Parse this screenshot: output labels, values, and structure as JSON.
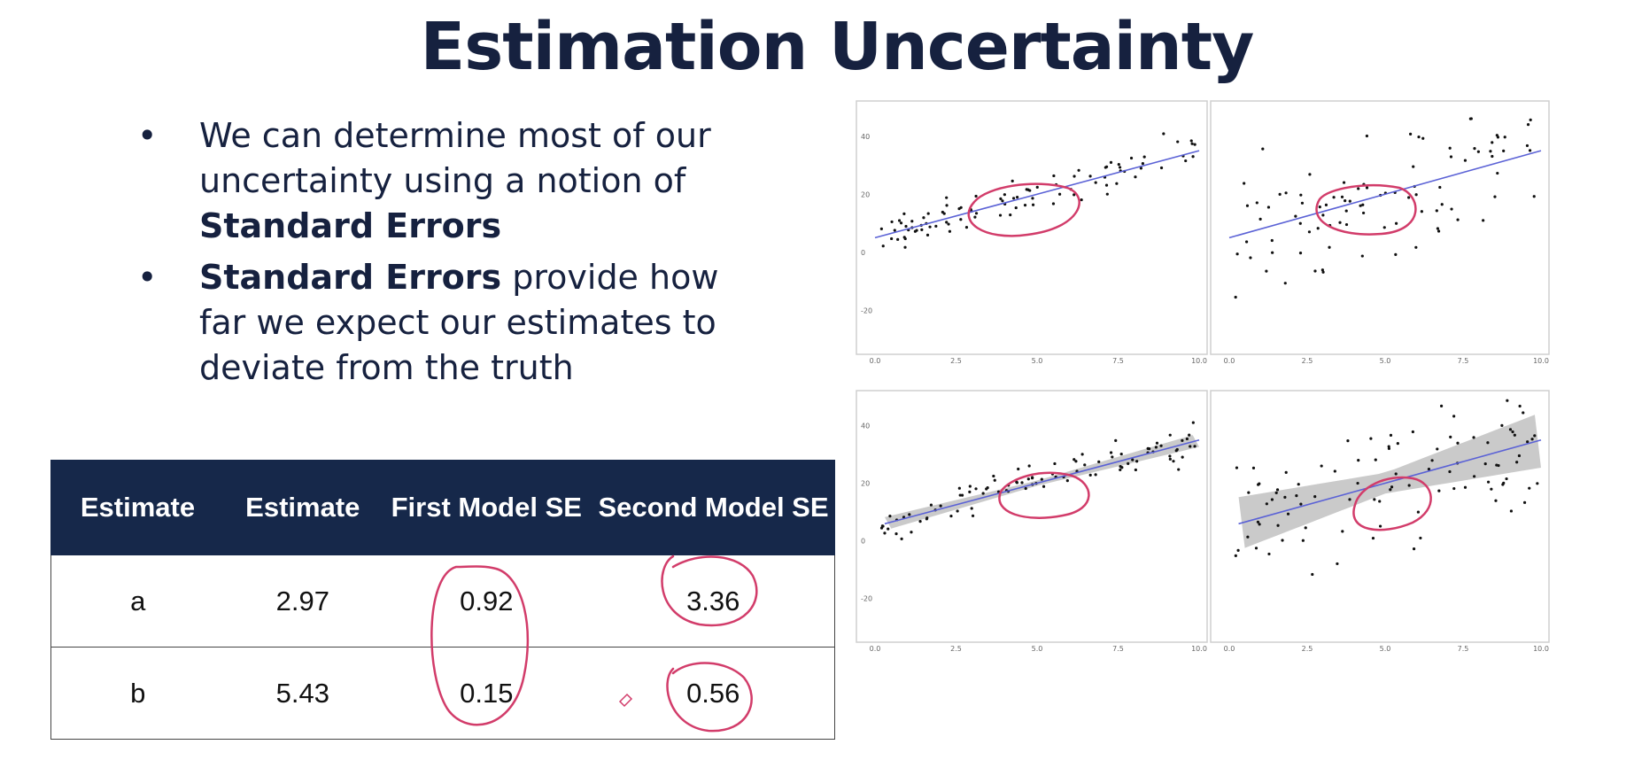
{
  "title": "Estimation Uncertainty",
  "bullets": [
    {
      "pre": "We can determine most of our uncertainty using a notion of ",
      "bold": "Standard Errors",
      "post": ""
    },
    {
      "pre": "",
      "bold": "Standard Errors",
      "post": " provide how far we expect our estimates to deviate from the truth"
    }
  ],
  "bullet_symbol": "•",
  "table": {
    "headers": [
      "Estimate",
      "Estimate",
      "First Model SE",
      "Second Model SE"
    ],
    "rows": [
      {
        "name": "a",
        "estimate": "2.97",
        "se1": "0.92",
        "se2": "3.36"
      },
      {
        "name": "b",
        "estimate": "5.43",
        "se1": "0.15",
        "se2": "0.56"
      }
    ]
  },
  "chart_data": [
    {
      "type": "scatter",
      "position": "top-left",
      "xlim": [
        0,
        10
      ],
      "ylim": [
        -30,
        50
      ],
      "x_ticks": [
        "0.0",
        "2.5",
        "5.0",
        "7.5",
        "10.0"
      ],
      "y_ticks": [
        "40",
        "20",
        "0",
        "-20"
      ],
      "fit_line": {
        "intercept": 5,
        "slope": 3
      },
      "confidence_band": false,
      "grid": false
    },
    {
      "type": "scatter",
      "position": "top-right",
      "xlim": [
        0,
        10
      ],
      "ylim": [
        -30,
        50
      ],
      "x_ticks": [
        "0.0",
        "2.5",
        "5.0",
        "7.5",
        "10.0"
      ],
      "y_ticks": [],
      "fit_line": {
        "intercept": 5,
        "slope": 3
      },
      "confidence_band": false,
      "grid": false
    },
    {
      "type": "scatter",
      "position": "bottom-left",
      "xlim": [
        0,
        10
      ],
      "ylim": [
        -30,
        50
      ],
      "x_ticks": [
        "0.0",
        "2.5",
        "5.0",
        "7.5",
        "10.0"
      ],
      "y_ticks": [
        "40",
        "20",
        "0",
        "-20"
      ],
      "fit_line": {
        "intercept": 5,
        "slope": 3
      },
      "confidence_band": true,
      "band_se": 1.5,
      "grid": false
    },
    {
      "type": "scatter",
      "position": "bottom-right",
      "xlim": [
        0,
        10
      ],
      "ylim": [
        -30,
        50
      ],
      "x_ticks": [
        "0.0",
        "2.5",
        "5.0",
        "7.5",
        "10.0"
      ],
      "y_ticks": [],
      "fit_line": {
        "intercept": 5,
        "slope": 3
      },
      "confidence_band": true,
      "band_se": 6,
      "grid": false
    }
  ],
  "colors": {
    "title": "#16213f",
    "table_header": "#16284a",
    "fit_line": "#5b62d6",
    "band": "#bdbdbd",
    "ink": "#d23c6a"
  }
}
